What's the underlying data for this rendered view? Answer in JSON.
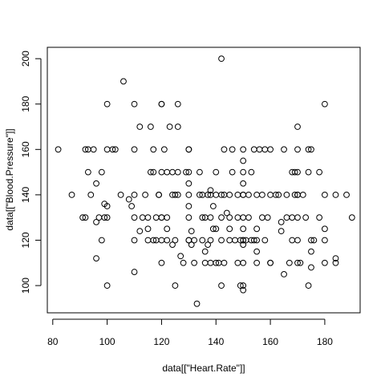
{
  "chart_data": {
    "type": "scatter",
    "title": "",
    "xlabel": "data[[\"Heart.Rate\"]]",
    "ylabel": "data[[\"Blood.Pressure\"]]",
    "xlim": [
      78,
      193
    ],
    "ylim": [
      88,
      205
    ],
    "xticks": [
      80,
      100,
      120,
      140,
      160,
      180
    ],
    "yticks": [
      100,
      120,
      140,
      160,
      180,
      200
    ],
    "grid": false,
    "marker": "open-circle",
    "points": [
      [
        82,
        160
      ],
      [
        87,
        140
      ],
      [
        91,
        130
      ],
      [
        92,
        130
      ],
      [
        92,
        160
      ],
      [
        93,
        160
      ],
      [
        93,
        150
      ],
      [
        94,
        140
      ],
      [
        95,
        160
      ],
      [
        96,
        145
      ],
      [
        96,
        128
      ],
      [
        96,
        112
      ],
      [
        97,
        130
      ],
      [
        98,
        120
      ],
      [
        98,
        150
      ],
      [
        99,
        130
      ],
      [
        99,
        136
      ],
      [
        100,
        135
      ],
      [
        100,
        130
      ],
      [
        100,
        160
      ],
      [
        100,
        180
      ],
      [
        100,
        100
      ],
      [
        102,
        160
      ],
      [
        103,
        160
      ],
      [
        105,
        140
      ],
      [
        106,
        190
      ],
      [
        108,
        138
      ],
      [
        109,
        135
      ],
      [
        110,
        180
      ],
      [
        110,
        160
      ],
      [
        110,
        140
      ],
      [
        110,
        130
      ],
      [
        110,
        120
      ],
      [
        110,
        106
      ],
      [
        112,
        170
      ],
      [
        112,
        124
      ],
      [
        113,
        130
      ],
      [
        114,
        140
      ],
      [
        115,
        120
      ],
      [
        115,
        130
      ],
      [
        115,
        125
      ],
      [
        116,
        150
      ],
      [
        116,
        170
      ],
      [
        117,
        160
      ],
      [
        117,
        150
      ],
      [
        117,
        120
      ],
      [
        118,
        120
      ],
      [
        118,
        130
      ],
      [
        119,
        140
      ],
      [
        119,
        140
      ],
      [
        120,
        180
      ],
      [
        120,
        180
      ],
      [
        120,
        150
      ],
      [
        120,
        130
      ],
      [
        120,
        130
      ],
      [
        120,
        120
      ],
      [
        120,
        110
      ],
      [
        121,
        160
      ],
      [
        122,
        150
      ],
      [
        122,
        130
      ],
      [
        122,
        120
      ],
      [
        122,
        125
      ],
      [
        123,
        170
      ],
      [
        124,
        150
      ],
      [
        124,
        140
      ],
      [
        124,
        118
      ],
      [
        125,
        140
      ],
      [
        125,
        120
      ],
      [
        125,
        100
      ],
      [
        126,
        180
      ],
      [
        126,
        170
      ],
      [
        126,
        150
      ],
      [
        126,
        140
      ],
      [
        127,
        113
      ],
      [
        128,
        110
      ],
      [
        129,
        150
      ],
      [
        130,
        160
      ],
      [
        130,
        160
      ],
      [
        130,
        150
      ],
      [
        130,
        145
      ],
      [
        130,
        140
      ],
      [
        130,
        135
      ],
      [
        130,
        130
      ],
      [
        130,
        120
      ],
      [
        130,
        120
      ],
      [
        131,
        118
      ],
      [
        131,
        124
      ],
      [
        132,
        110
      ],
      [
        132,
        120
      ],
      [
        133,
        92
      ],
      [
        134,
        140
      ],
      [
        134,
        150
      ],
      [
        135,
        130
      ],
      [
        135,
        140
      ],
      [
        135,
        120
      ],
      [
        136,
        110
      ],
      [
        136,
        115
      ],
      [
        136,
        130
      ],
      [
        137,
        118
      ],
      [
        137,
        140
      ],
      [
        138,
        142
      ],
      [
        138,
        140
      ],
      [
        138,
        120
      ],
      [
        138,
        110
      ],
      [
        138,
        130
      ],
      [
        139,
        125
      ],
      [
        139,
        135
      ],
      [
        140,
        150
      ],
      [
        140,
        125
      ],
      [
        140,
        140
      ],
      [
        140,
        110
      ],
      [
        141,
        110
      ],
      [
        142,
        130
      ],
      [
        142,
        120
      ],
      [
        142,
        200
      ],
      [
        142,
        140
      ],
      [
        142,
        100
      ],
      [
        143,
        110
      ],
      [
        143,
        140
      ],
      [
        143,
        160
      ],
      [
        144,
        132
      ],
      [
        145,
        120
      ],
      [
        145,
        130
      ],
      [
        145,
        125
      ],
      [
        145,
        140
      ],
      [
        146,
        160
      ],
      [
        146,
        150
      ],
      [
        147,
        120
      ],
      [
        148,
        140
      ],
      [
        148,
        130
      ],
      [
        148,
        110
      ],
      [
        149,
        120
      ],
      [
        149,
        100
      ],
      [
        150,
        160
      ],
      [
        150,
        155
      ],
      [
        150,
        150
      ],
      [
        150,
        145
      ],
      [
        150,
        140
      ],
      [
        150,
        140
      ],
      [
        150,
        130
      ],
      [
        150,
        125
      ],
      [
        150,
        120
      ],
      [
        150,
        120
      ],
      [
        150,
        118
      ],
      [
        150,
        110
      ],
      [
        150,
        100
      ],
      [
        150,
        98
      ],
      [
        151,
        120
      ],
      [
        152,
        130
      ],
      [
        152,
        140
      ],
      [
        153,
        120
      ],
      [
        153,
        150
      ],
      [
        154,
        160
      ],
      [
        154,
        120
      ],
      [
        155,
        125
      ],
      [
        155,
        120
      ],
      [
        155,
        140
      ],
      [
        155,
        110
      ],
      [
        155,
        115
      ],
      [
        156,
        160
      ],
      [
        157,
        140
      ],
      [
        157,
        130
      ],
      [
        158,
        160
      ],
      [
        158,
        120
      ],
      [
        159,
        130
      ],
      [
        160,
        160
      ],
      [
        160,
        140
      ],
      [
        160,
        110
      ],
      [
        160,
        110
      ],
      [
        162,
        140
      ],
      [
        163,
        140
      ],
      [
        164,
        124
      ],
      [
        164,
        128
      ],
      [
        165,
        160
      ],
      [
        165,
        105
      ],
      [
        166,
        140
      ],
      [
        166,
        130
      ],
      [
        167,
        110
      ],
      [
        168,
        150
      ],
      [
        168,
        130
      ],
      [
        168,
        120
      ],
      [
        169,
        140
      ],
      [
        169,
        150
      ],
      [
        170,
        170
      ],
      [
        170,
        160
      ],
      [
        170,
        150
      ],
      [
        170,
        140
      ],
      [
        170,
        140
      ],
      [
        170,
        130
      ],
      [
        170,
        120
      ],
      [
        170,
        110
      ],
      [
        171,
        110
      ],
      [
        172,
        140
      ],
      [
        173,
        130
      ],
      [
        174,
        150
      ],
      [
        174,
        160
      ],
      [
        174,
        100
      ],
      [
        175,
        160
      ],
      [
        175,
        120
      ],
      [
        175,
        115
      ],
      [
        175,
        108
      ],
      [
        176,
        120
      ],
      [
        178,
        150
      ],
      [
        178,
        130
      ],
      [
        180,
        180
      ],
      [
        180,
        140
      ],
      [
        180,
        125
      ],
      [
        180,
        120
      ],
      [
        180,
        110
      ],
      [
        184,
        140
      ],
      [
        184,
        112
      ],
      [
        184,
        110
      ],
      [
        188,
        140
      ],
      [
        190,
        130
      ]
    ]
  }
}
